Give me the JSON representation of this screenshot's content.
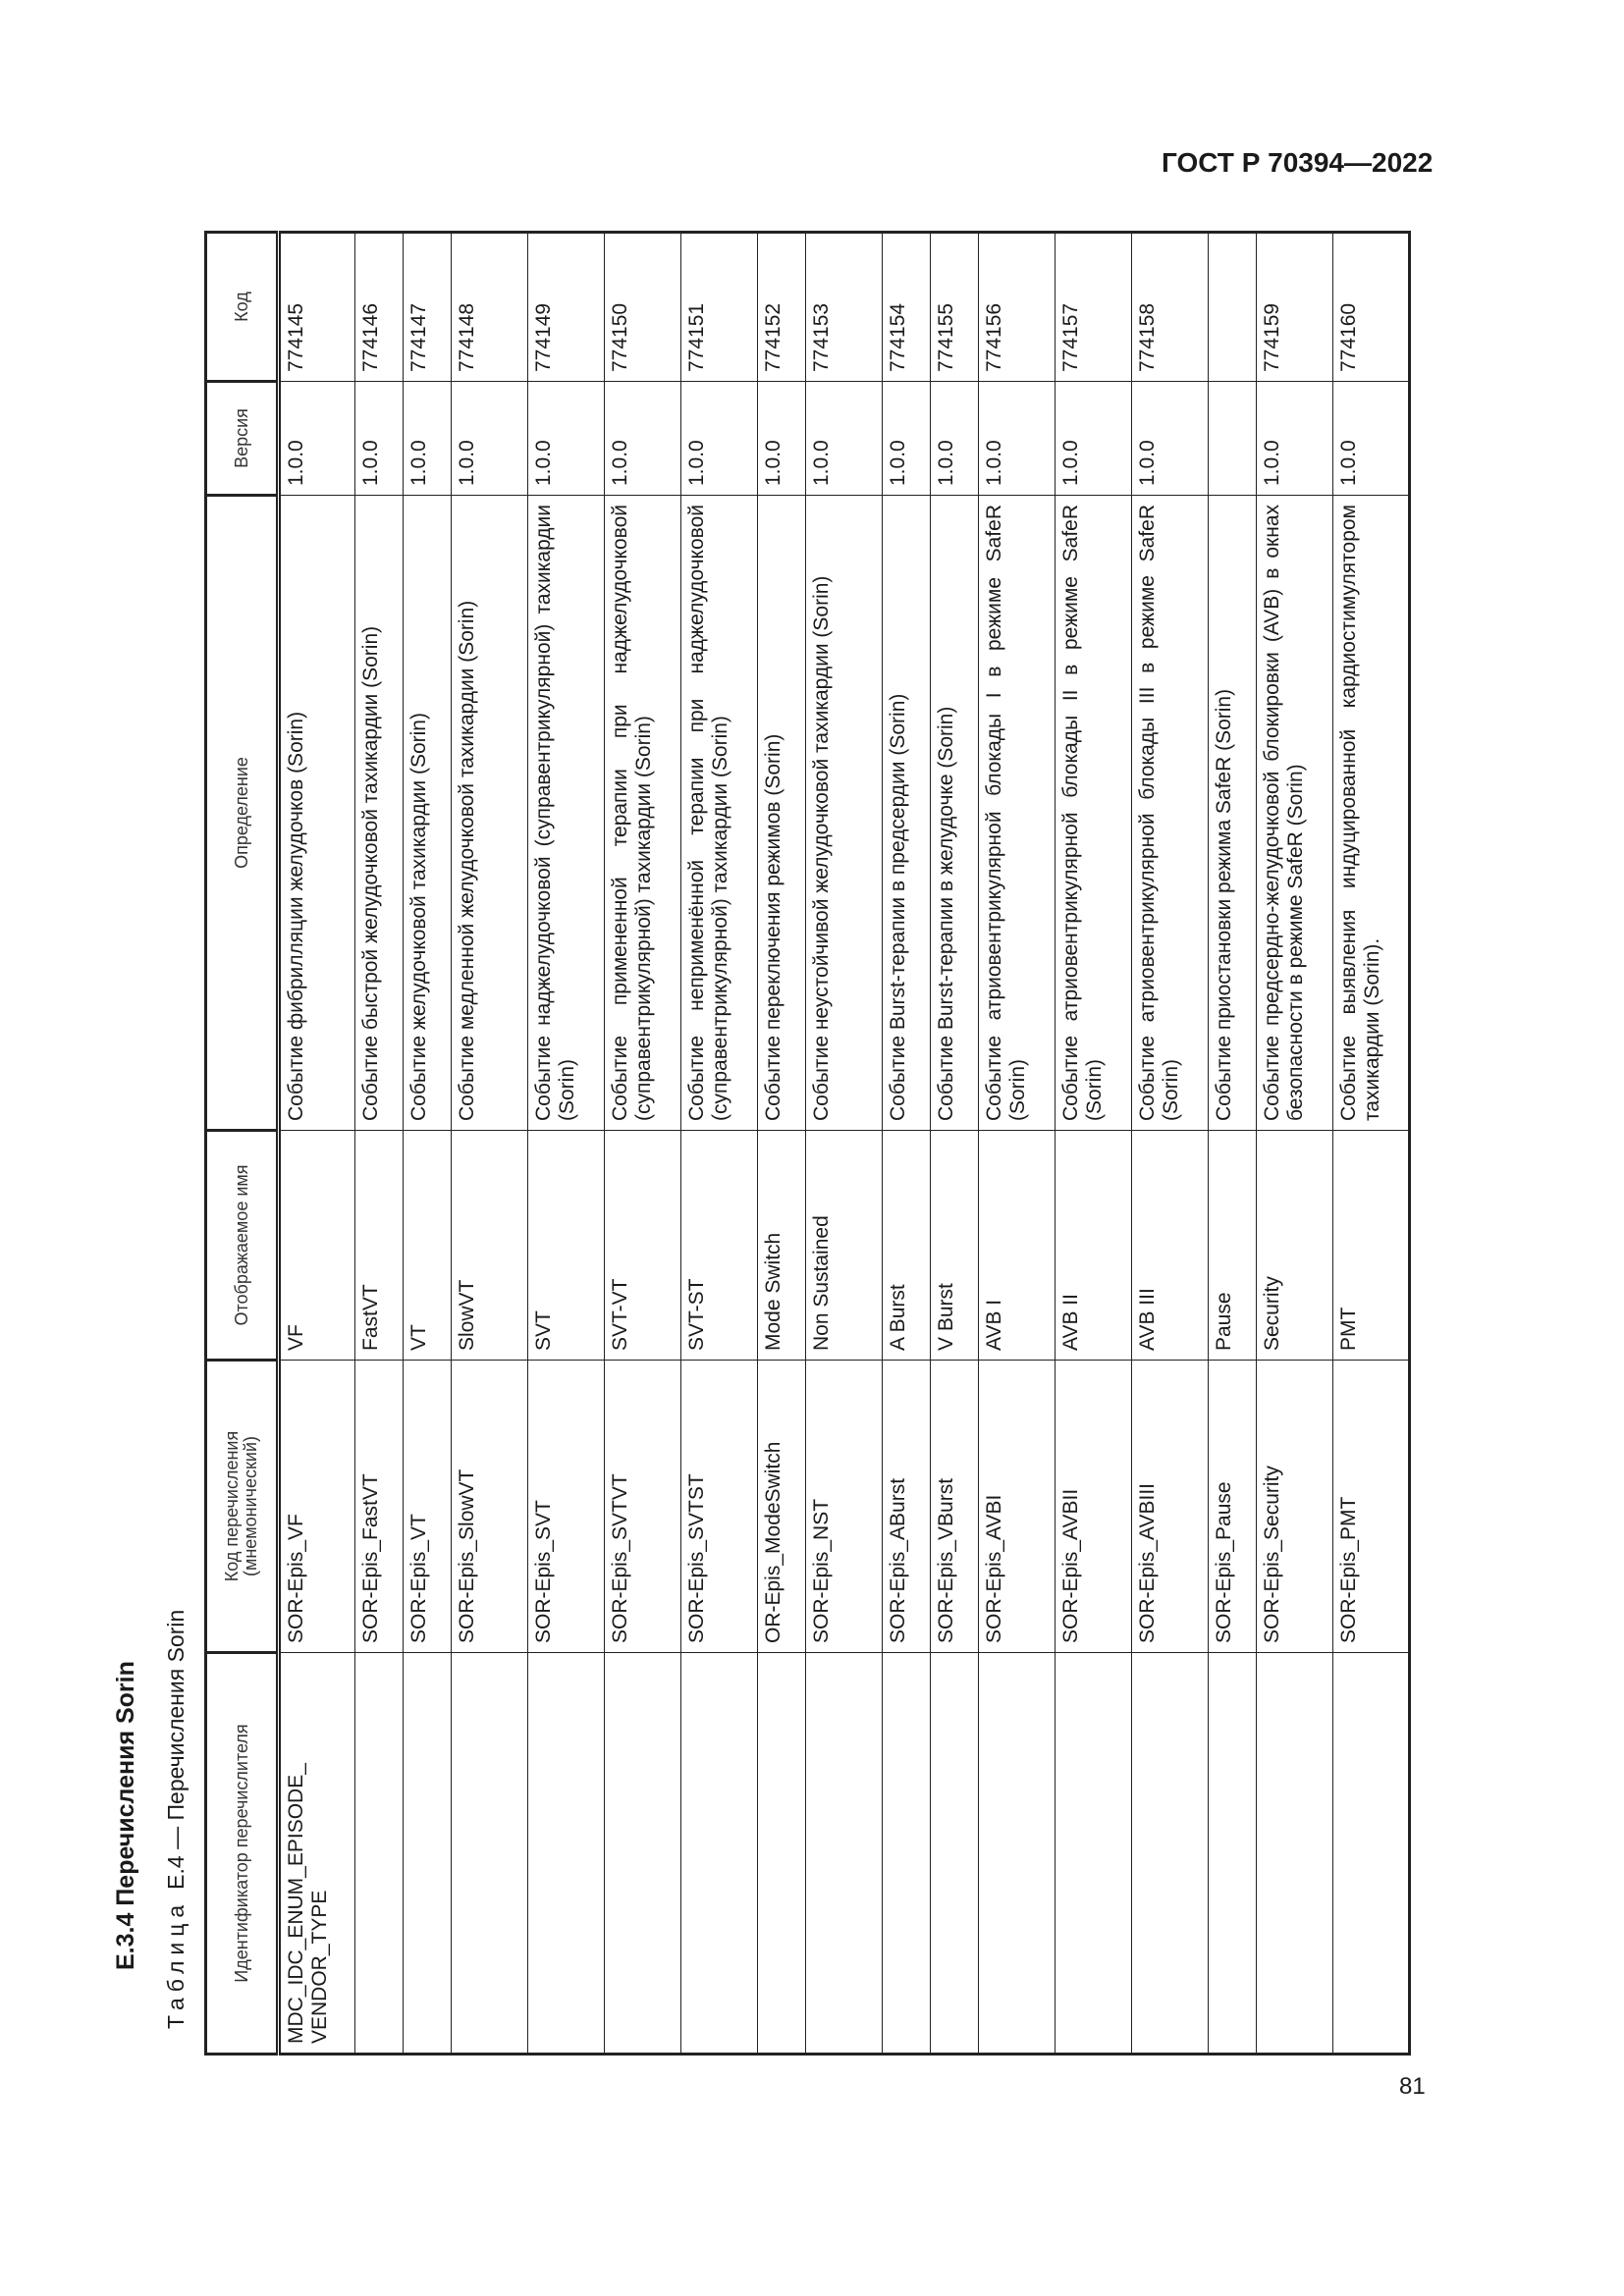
{
  "header": {
    "doc_id": "ГОСТ Р 70394—2022"
  },
  "footer": {
    "page_number": "81"
  },
  "section": {
    "heading": "E.3.4 Перечисления Sorin"
  },
  "table": {
    "caption_label": "Таблица",
    "caption_text": "E.4 — Перечисления Sorin",
    "columns": [
      "Идентификатор перечислителя",
      "Код перечисления (мнемонический)",
      "Отображаемое имя",
      "Определение",
      "Версия",
      "Код"
    ],
    "rows": [
      {
        "ident": "MDC_IDC_ENUM_EPISODE_ VENDOR_TYPE",
        "mnemonic": "SOR-Epis_VF",
        "display": "VF",
        "definition": "Событие фибрилляции желудочков (Sorin)",
        "version": "1.0.0",
        "code": "774145"
      },
      {
        "ident": "",
        "mnemonic": "SOR-Epis_FastVT",
        "display": "FastVT",
        "definition": "Событие быстрой желудочковой тахикардии (Sorin)",
        "version": "1.0.0",
        "code": "774146"
      },
      {
        "ident": "",
        "mnemonic": "SOR-Epis_VT",
        "display": "VT",
        "definition": "Событие желудочковой тахикардии (Sorin)",
        "version": "1.0.0",
        "code": "774147"
      },
      {
        "ident": "",
        "mnemonic": "SOR-Epis_SlowVT",
        "display": "SlowVT",
        "definition": "Событие медленной желудочковой тахикардии (Sorin)",
        "version": "1.0.0",
        "code": "774148"
      },
      {
        "ident": "",
        "mnemonic": "SOR-Epis_SVT",
        "display": "SVT",
        "definition": "Событие наджелудочковой (суправентрикулярной) тахикардии (Sorin)",
        "version": "1.0.0",
        "code": "774149"
      },
      {
        "ident": "",
        "mnemonic": "SOR-Epis_SVTVT",
        "display": "SVT-VT",
        "definition": "Событие примененной терапии при наджелудочковой (суправентрикулярной) тахикардии (Sorin)",
        "version": "1.0.0",
        "code": "774150"
      },
      {
        "ident": "",
        "mnemonic": "SOR-Epis_SVTST",
        "display": "SVT-ST",
        "definition": "Событие неприменённой терапии при наджелудочковой (суправентрикулярной) тахикардии (Sorin)",
        "version": "1.0.0",
        "code": "774151"
      },
      {
        "ident": "",
        "mnemonic": "OR-Epis_ModeSwitch",
        "display": "Mode Switch",
        "definition": "Событие переключения режимов (Sorin)",
        "version": "1.0.0",
        "code": "774152"
      },
      {
        "ident": "",
        "mnemonic": "SOR-Epis_NST",
        "display": "Non Sustained",
        "definition": "Событие неустойчивой желудочковой тахикардии (Sorin)",
        "version": "1.0.0",
        "code": "774153"
      },
      {
        "ident": "",
        "mnemonic": "SOR-Epis_ABurst",
        "display": "A Burst",
        "definition": "Событие Burst-терапии в предсердии (Sorin)",
        "version": "1.0.0",
        "code": "774154"
      },
      {
        "ident": "",
        "mnemonic": "SOR-Epis_VBurst",
        "display": "V Burst",
        "definition": "Событие Burst-терапии в желудочке (Sorin)",
        "version": "1.0.0",
        "code": "774155"
      },
      {
        "ident": "",
        "mnemonic": "SOR-Epis_AVBI",
        "display": "AVB I",
        "definition": "Событие атриовентрикулярной блокады I в режиме SafeR (Sorin)",
        "version": "1.0.0",
        "code": "774156"
      },
      {
        "ident": "",
        "mnemonic": "SOR-Epis_AVBII",
        "display": "AVB II",
        "definition": "Событие атриовентрикулярной блокады II в режиме SafeR (Sorin)",
        "version": "1.0.0",
        "code": "774157"
      },
      {
        "ident": "",
        "mnemonic": "SOR-Epis_AVBIII",
        "display": "AVB III",
        "definition": "Событие атриовентрикулярной блокады III в режиме SafeR (Sorin)",
        "version": "1.0.0",
        "code": "774158"
      },
      {
        "ident": "",
        "mnemonic": "SOR-Epis_Pause",
        "display": "Pause",
        "definition": "Событие приостановки режима SafeR (Sorin)",
        "version": "",
        "code": ""
      },
      {
        "ident": "",
        "mnemonic": "SOR-Epis_Security",
        "display": "Security",
        "definition": "Событие предсердно-желудочковой блокировки (AVB) в окнах безопасности в режиме SafeR (Sorin)",
        "version": "1.0.0",
        "code": "774159"
      },
      {
        "ident": "",
        "mnemonic": "SOR-Epis_PMT",
        "display": "PMT",
        "definition": "Событие выявления индуцированной кардиостимулятором тахикардии (Sorin).",
        "version": "1.0.0",
        "code": "774160"
      }
    ]
  }
}
